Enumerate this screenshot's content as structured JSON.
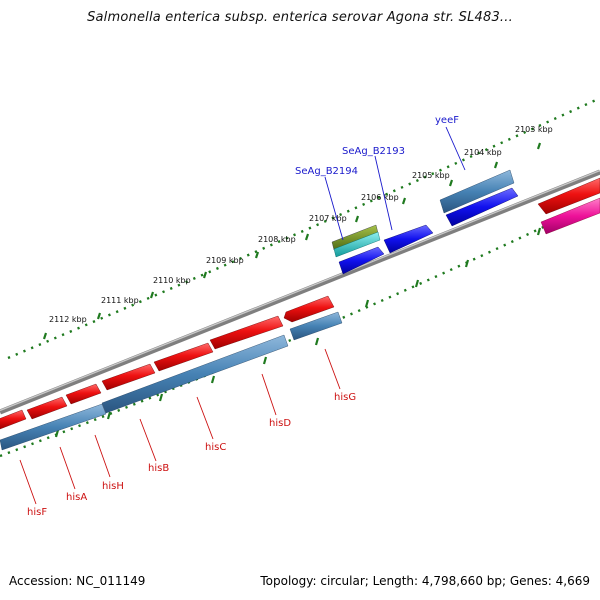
{
  "title": "Salmonella enterica subsp. enterica serovar Agona str. SL483...",
  "footer": {
    "accession": "Accession: NC_011149",
    "summary": "Topology: circular; Length: 4,798,660 bp; Genes: 4,669"
  },
  "colors": {
    "backbone": "#8a8a8a",
    "tick": "#1f7a1f",
    "gene_red": "#ee1111",
    "gene_steel": "#4682b4",
    "gene_blue": "#1111ee",
    "gene_magenta": "#ee1199",
    "gene_olive": "#6b8e23",
    "gene_cyan": "#22cccc",
    "label_blue": "#1a1acc",
    "label_red": "#cc1111"
  },
  "kbp_ticks": [
    {
      "label": "2103 kbp"
    },
    {
      "label": "2104 kbp"
    },
    {
      "label": "2105 kbp"
    },
    {
      "label": "2106 kbp"
    },
    {
      "label": "2107 kbp"
    },
    {
      "label": "2108 kbp"
    },
    {
      "label": "2109 kbp"
    },
    {
      "label": "2110 kbp"
    },
    {
      "label": "2111 kbp"
    },
    {
      "label": "2112 kbp"
    }
  ],
  "gene_labels": {
    "top": [
      "yeeF",
      "SeAg_B2193",
      "SeAg_B2194"
    ],
    "bottom": [
      "hisG",
      "hisD",
      "hisC",
      "hisB",
      "hisH",
      "hisA",
      "hisF"
    ]
  }
}
